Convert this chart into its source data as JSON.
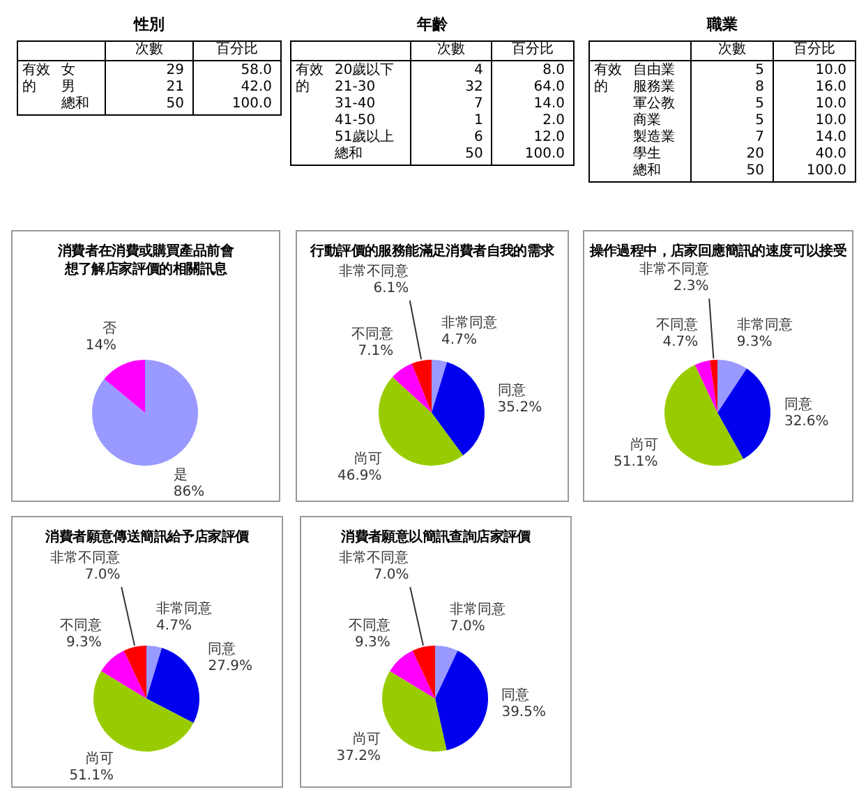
{
  "chart_data": [
    {
      "type": "other",
      "title": "性別",
      "ylabel": "有效的",
      "categories": [
        "女",
        "男",
        "總和"
      ],
      "series": [
        {
          "name": "次數",
          "values": [
            29,
            21,
            50
          ],
          "value_labels": [
            "29",
            "21",
            "50"
          ]
        },
        {
          "name": "百分比",
          "values": [
            58.0,
            42.0,
            100.0
          ],
          "value_labels": [
            "58.0",
            "42.0",
            "100.0"
          ]
        }
      ]
    },
    {
      "type": "other",
      "title": "年齡",
      "ylabel": "有效的",
      "categories": [
        "20歲以下",
        "21-30",
        "31-40",
        "41-50",
        "51歲以上",
        "總和"
      ],
      "series": [
        {
          "name": "次數",
          "values": [
            4,
            32,
            7,
            1,
            6,
            50
          ],
          "value_labels": [
            "4",
            "32",
            "7",
            "1",
            "6",
            "50"
          ]
        },
        {
          "name": "百分比",
          "values": [
            8.0,
            64.0,
            14.0,
            2.0,
            12.0,
            100.0
          ],
          "value_labels": [
            "8.0",
            "64.0",
            "14.0",
            "2.0",
            "12.0",
            "100.0"
          ]
        }
      ]
    },
    {
      "type": "other",
      "title": "職業",
      "ylabel": "有效的",
      "categories": [
        "自由業",
        "服務業",
        "軍公教",
        "商業",
        "製造業",
        "學生",
        "總和"
      ],
      "series": [
        {
          "name": "次數",
          "values": [
            5,
            8,
            5,
            5,
            7,
            20,
            50
          ],
          "value_labels": [
            "5",
            "8",
            "5",
            "5",
            "7",
            "20",
            "50"
          ]
        },
        {
          "name": "百分比",
          "values": [
            10.0,
            16.0,
            10.0,
            10.0,
            14.0,
            40.0,
            100.0
          ],
          "value_labels": [
            "10.0",
            "16.0",
            "10.0",
            "10.0",
            "14.0",
            "40.0",
            "100.0"
          ]
        }
      ]
    },
    {
      "type": "pie",
      "title": "消費者在消費或購買產品前會想了解店家評價的相關訊息",
      "categories": [
        "是",
        "否"
      ],
      "values": [
        86,
        14
      ],
      "colors": [
        "#9999ff",
        "#ff00ff"
      ],
      "value_labels": [
        "86%",
        "14%"
      ]
    },
    {
      "type": "pie",
      "title": "行動評價的服務能滿足消費者自我的需求",
      "categories": [
        "非常同意",
        "同意",
        "尚可",
        "不同意",
        "非常不同意"
      ],
      "values": [
        4.7,
        35.2,
        46.9,
        7.1,
        6.1
      ],
      "colors": [
        "#9999ff",
        "#0000ee",
        "#99cc00",
        "#ff00ff",
        "#ff0000"
      ],
      "value_labels": [
        "4.7%",
        "35.2%",
        "46.9%",
        "7.1%",
        "6.1%"
      ]
    },
    {
      "type": "pie",
      "title": "操作過程中，店家回應簡訊的速度可以接受",
      "categories": [
        "非常同意",
        "同意",
        "尚可",
        "不同意",
        "非常不同意"
      ],
      "values": [
        9.3,
        32.6,
        51.1,
        4.7,
        2.3
      ],
      "colors": [
        "#9999ff",
        "#0000ee",
        "#99cc00",
        "#ff00ff",
        "#ff0000"
      ],
      "value_labels": [
        "9.3%",
        "32.6%",
        "51.1%",
        "4.7%",
        "2.3%"
      ]
    },
    {
      "type": "pie",
      "title": "消費者願意傳送簡訊給予店家評價",
      "categories": [
        "非常同意",
        "同意",
        "尚可",
        "不同意",
        "非常不同意"
      ],
      "values": [
        4.7,
        27.9,
        51.1,
        9.3,
        7.0
      ],
      "colors": [
        "#9999ff",
        "#0000ee",
        "#99cc00",
        "#ff00ff",
        "#ff0000"
      ],
      "value_labels": [
        "4.7%",
        "27.9%",
        "51.1%",
        "9.3%",
        "7.0%"
      ]
    },
    {
      "type": "pie",
      "title": "消費者願意以簡訊查詢店家評價",
      "categories": [
        "非常同意",
        "同意",
        "尚可",
        "不同意",
        "非常不同意"
      ],
      "values": [
        7.0,
        39.5,
        37.2,
        9.3,
        7.0
      ],
      "colors": [
        "#9999ff",
        "#0000ee",
        "#99cc00",
        "#ff00ff",
        "#ff0000"
      ],
      "value_labels": [
        "7.0%",
        "39.5%",
        "37.2%",
        "9.3%",
        "7.0%"
      ]
    }
  ]
}
